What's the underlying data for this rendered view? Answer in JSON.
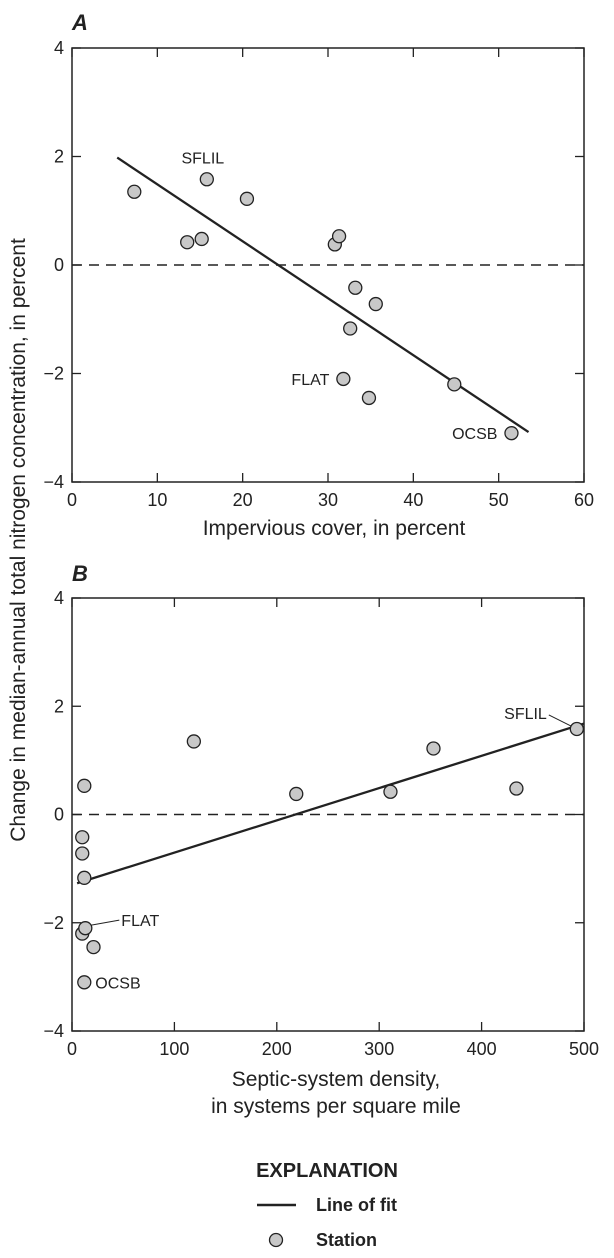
{
  "shared_ylabel": "Change in median-annual total nitrogen concentration, in percent",
  "legend": {
    "title": "EXPLANATION",
    "line_label": "Line of fit",
    "station_label": "Station"
  },
  "colors": {
    "marker_fill": "#c8c8c8",
    "ink": "#222222"
  },
  "chart_data": [
    {
      "type": "scatter",
      "panel": "A",
      "xlabel": "Impervious cover, in percent",
      "ylabel": "Change in median-annual total nitrogen concentration, in percent",
      "xlim": [
        0,
        60
      ],
      "ylim": [
        -4,
        4
      ],
      "xticks": [
        0,
        10,
        20,
        30,
        40,
        50,
        60
      ],
      "yticks": [
        -4,
        -2,
        0,
        2,
        4
      ],
      "zero_reference_line": "dashed",
      "grid": false,
      "points": [
        {
          "x": 7.3,
          "y": 1.35
        },
        {
          "x": 13.5,
          "y": 0.42
        },
        {
          "x": 15.2,
          "y": 0.48
        },
        {
          "x": 15.8,
          "y": 1.58,
          "label": "SFLIL"
        },
        {
          "x": 20.5,
          "y": 1.22
        },
        {
          "x": 30.8,
          "y": 0.38
        },
        {
          "x": 31.3,
          "y": 0.53
        },
        {
          "x": 31.8,
          "y": -2.1,
          "label": "FLAT"
        },
        {
          "x": 32.6,
          "y": -1.17
        },
        {
          "x": 33.2,
          "y": -0.42
        },
        {
          "x": 34.8,
          "y": -2.45
        },
        {
          "x": 35.6,
          "y": -0.72
        },
        {
          "x": 44.8,
          "y": -2.2
        },
        {
          "x": 51.5,
          "y": -3.1,
          "label": "OCSB"
        }
      ],
      "fit_line": {
        "x": [
          5.3,
          53.5
        ],
        "y": [
          1.98,
          -3.08
        ]
      }
    },
    {
      "type": "scatter",
      "panel": "B",
      "xlabel": "Septic-system density,\nin systems per square mile",
      "ylabel": "Change in median-annual total nitrogen concentration, in percent",
      "xlim": [
        0,
        500
      ],
      "ylim": [
        -4,
        4
      ],
      "xticks": [
        0,
        100,
        200,
        300,
        400,
        500
      ],
      "yticks": [
        -4,
        -2,
        0,
        2,
        4
      ],
      "zero_reference_line": "dashed",
      "grid": false,
      "points": [
        {
          "x": 12,
          "y": 0.53
        },
        {
          "x": 10,
          "y": -0.42
        },
        {
          "x": 10,
          "y": -0.72
        },
        {
          "x": 12,
          "y": -1.17
        },
        {
          "x": 10,
          "y": -2.2
        },
        {
          "x": 13,
          "y": -2.1,
          "label": "FLAT"
        },
        {
          "x": 21,
          "y": -2.45
        },
        {
          "x": 12,
          "y": -3.1,
          "label": "OCSB"
        },
        {
          "x": 119,
          "y": 1.35
        },
        {
          "x": 219,
          "y": 0.38
        },
        {
          "x": 311,
          "y": 0.42
        },
        {
          "x": 353,
          "y": 1.22
        },
        {
          "x": 434,
          "y": 0.48
        },
        {
          "x": 493,
          "y": 1.58,
          "label": "SFLIL"
        }
      ],
      "fit_line": {
        "x": [
          5,
          500
        ],
        "y": [
          -1.27,
          1.68
        ]
      }
    }
  ]
}
